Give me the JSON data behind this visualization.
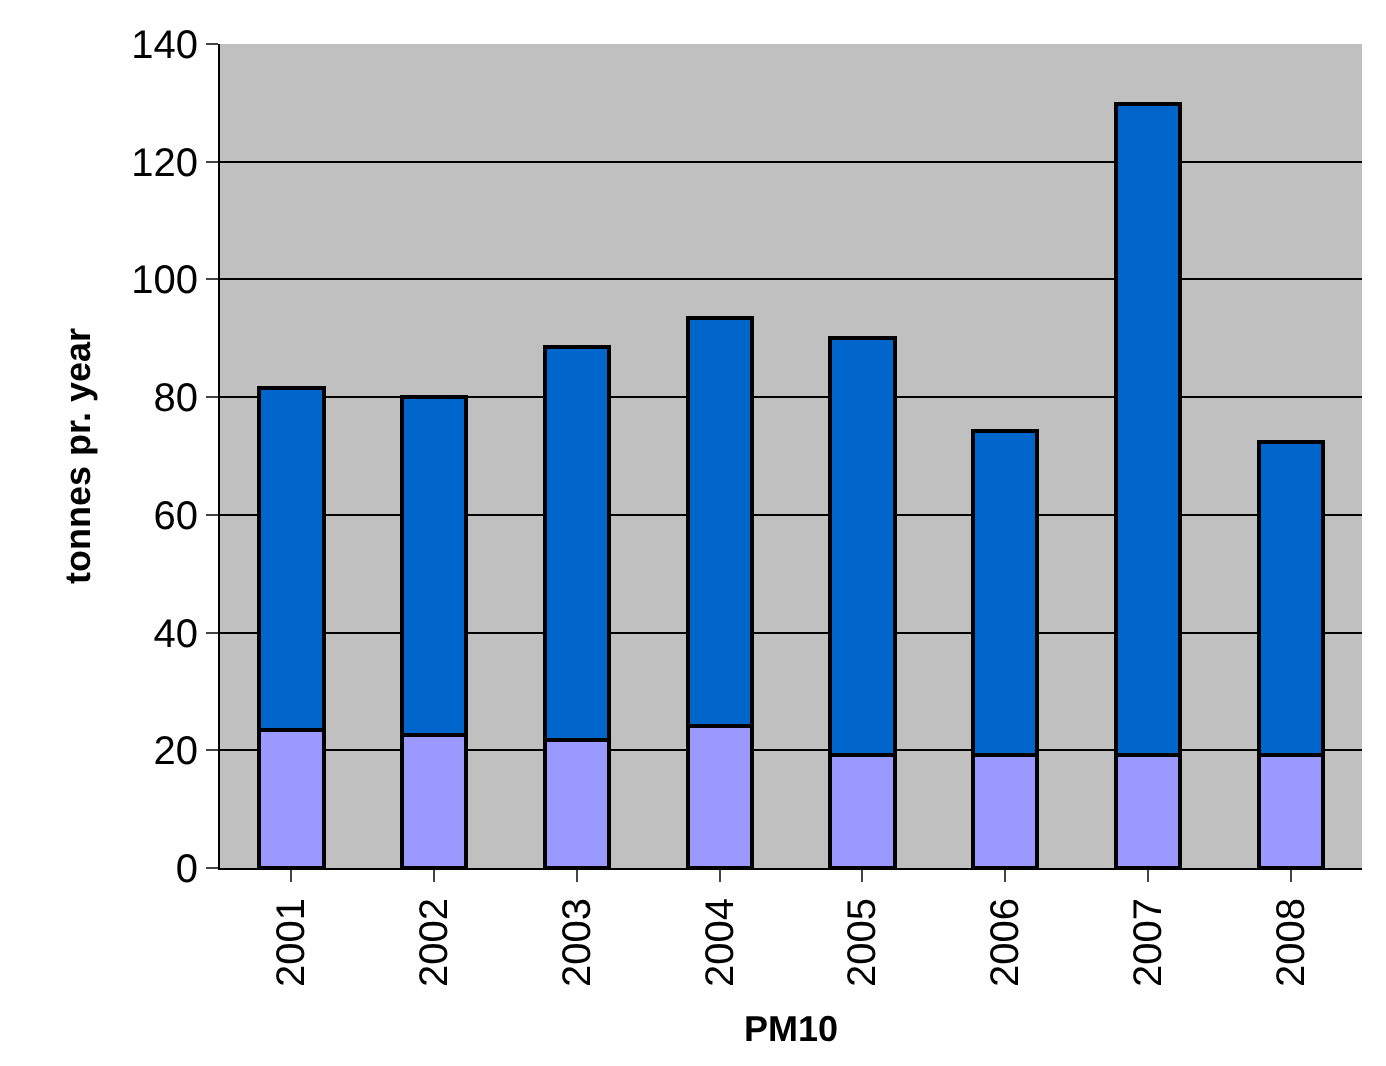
{
  "chart_data": {
    "type": "bar",
    "stacked": true,
    "xlabel": "PM10",
    "ylabel": "tonnes pr. year",
    "categories": [
      "2001",
      "2002",
      "2003",
      "2004",
      "2005",
      "2006",
      "2007",
      "2008"
    ],
    "series": [
      {
        "color": "#9999ff",
        "values": [
          23.5,
          22.6,
          21.7,
          24.2,
          19.2,
          19.2,
          19.2,
          19.2
        ]
      },
      {
        "color": "#0066cc",
        "values": [
          58.1,
          57.4,
          66.9,
          69.2,
          70.9,
          55.0,
          110.6,
          53.1
        ]
      }
    ],
    "ylim": [
      0,
      140
    ],
    "yticks": [
      0,
      20,
      40,
      60,
      80,
      100,
      120,
      140
    ],
    "grid": "y"
  }
}
